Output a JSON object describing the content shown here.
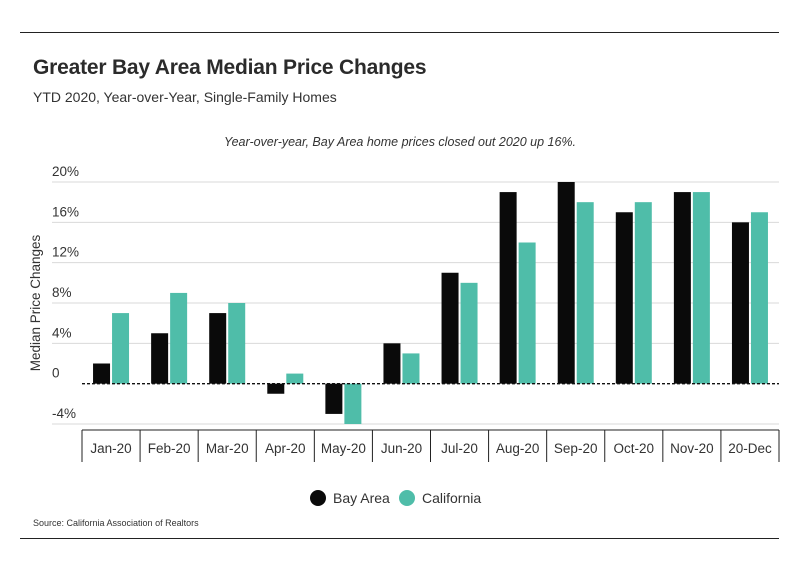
{
  "header": {
    "title": "Greater Bay Area Median Price Changes",
    "subtitle": "YTD 2020, Year-over-Year, Single-Family Homes"
  },
  "footer": {
    "source": "Source:  California Association of Realtors"
  },
  "colors": {
    "bay_area": "#0a0a0a",
    "california": "#4fbda9",
    "grid": "#d9d9d9",
    "zero_line": "#111111"
  },
  "chart_data": {
    "type": "bar",
    "annotation": "Year-over-year, Bay Area home prices closed out  2020 up 16%.",
    "ylabel": "Median Price Changes",
    "xlabel": "",
    "ylim": [
      -4,
      20
    ],
    "yticks": [
      -4,
      0,
      4,
      8,
      12,
      16,
      20
    ],
    "ytick_labels": [
      "-4%",
      "0",
      "4%",
      "8%",
      "12%",
      "16%",
      "20%"
    ],
    "grid": true,
    "legend_position": "bottom",
    "categories": [
      "Jan-20",
      "Feb-20",
      "Mar-20",
      "Apr-20",
      "May-20",
      "Jun-20",
      "Jul-20",
      "Aug-20",
      "Sep-20",
      "Oct-20",
      "Nov-20",
      "20-Dec"
    ],
    "series": [
      {
        "name": "Bay Area",
        "values": [
          2,
          5,
          7,
          -1,
          -3,
          4,
          11,
          19,
          20,
          17,
          19,
          16
        ]
      },
      {
        "name": "California",
        "values": [
          7,
          9,
          8,
          1,
          -4,
          3,
          10,
          14,
          18,
          18,
          19,
          17
        ]
      }
    ]
  }
}
